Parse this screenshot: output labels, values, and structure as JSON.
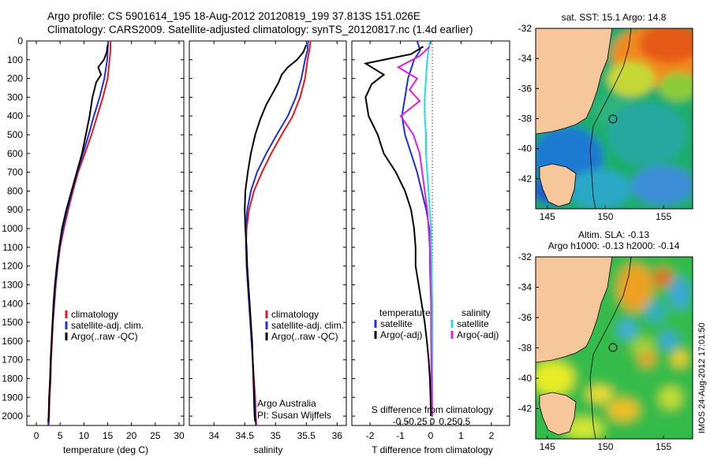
{
  "title_line1": "Argo profile: CS 5901614_195 18-Aug-2012 20120819_199 37.813S 151.026E",
  "title_line2": "Climatology: CARS2009. Satellite-adjusted climatology: synTS_20120817.nc (1.4d earlier)",
  "credit_vertical": "IMOS 24-Aug-2012 17:01:50",
  "colors": {
    "climatology": "#e31a1c",
    "satellite": "#1f2fd6",
    "argo": "#000000",
    "satellite_s": "#22dddd",
    "argo_s": "#dd22dd",
    "land": "#f5c79a"
  },
  "chart_data": [
    {
      "type": "line",
      "xlabel": "temperature (deg C)",
      "ylabel": "",
      "xlim": [
        -2,
        31
      ],
      "ylim": [
        2050,
        0
      ],
      "xticks": [
        "0",
        "5",
        "10",
        "15",
        "20",
        "25",
        "30"
      ],
      "yticks": [
        "0",
        "100",
        "200",
        "300",
        "400",
        "500",
        "600",
        "700",
        "800",
        "900",
        "1000",
        "1100",
        "1200",
        "1300",
        "1400",
        "1500",
        "1600",
        "1700",
        "1800",
        "1900",
        "2000"
      ],
      "legend": [
        "climatology",
        "satellite-adj. clim.",
        "Argo(..raw -QC)"
      ],
      "series": [
        {
          "name": "climatology",
          "points": [
            [
              15.6,
              0
            ],
            [
              15.6,
              50
            ],
            [
              15.4,
              100
            ],
            [
              15.0,
              200
            ],
            [
              14.0,
              300
            ],
            [
              12.8,
              400
            ],
            [
              11.6,
              500
            ],
            [
              10.2,
              600
            ],
            [
              8.8,
              700
            ],
            [
              7.7,
              800
            ],
            [
              6.7,
              900
            ],
            [
              5.8,
              1000
            ],
            [
              5.0,
              1100
            ],
            [
              4.5,
              1200
            ],
            [
              4.1,
              1300
            ],
            [
              3.8,
              1400
            ],
            [
              3.5,
              1500
            ],
            [
              3.3,
              1600
            ],
            [
              3.1,
              1700
            ],
            [
              3.0,
              1800
            ],
            [
              2.8,
              1900
            ],
            [
              2.7,
              2000
            ],
            [
              2.6,
              2050
            ]
          ]
        },
        {
          "name": "satellite-adj. clim.",
          "points": [
            [
              15.1,
              0
            ],
            [
              15.0,
              50
            ],
            [
              14.9,
              100
            ],
            [
              14.3,
              200
            ],
            [
              13.3,
              300
            ],
            [
              12.1,
              400
            ],
            [
              11.0,
              500
            ],
            [
              9.8,
              600
            ],
            [
              8.6,
              700
            ],
            [
              7.5,
              800
            ],
            [
              6.5,
              900
            ],
            [
              5.6,
              1000
            ],
            [
              4.9,
              1100
            ],
            [
              4.4,
              1200
            ],
            [
              4.0,
              1300
            ],
            [
              3.7,
              1400
            ],
            [
              3.4,
              1500
            ],
            [
              3.2,
              1600
            ],
            [
              3.0,
              1700
            ],
            [
              2.9,
              1800
            ],
            [
              2.7,
              1900
            ],
            [
              2.6,
              2000
            ],
            [
              2.5,
              2050
            ]
          ]
        },
        {
          "name": "Argo(..raw -QC)",
          "points": [
            [
              15.0,
              20
            ],
            [
              14.8,
              60
            ],
            [
              14.2,
              100
            ],
            [
              13.0,
              140
            ],
            [
              13.6,
              180
            ],
            [
              12.6,
              220
            ],
            [
              11.8,
              300
            ],
            [
              11.2,
              400
            ],
            [
              10.4,
              500
            ],
            [
              9.6,
              600
            ],
            [
              8.5,
              700
            ],
            [
              7.4,
              800
            ],
            [
              6.3,
              900
            ],
            [
              5.4,
              1000
            ],
            [
              4.8,
              1100
            ],
            [
              4.3,
              1200
            ],
            [
              3.9,
              1300
            ],
            [
              3.6,
              1400
            ],
            [
              3.4,
              1500
            ],
            [
              3.2,
              1600
            ],
            [
              3.0,
              1700
            ],
            [
              2.9,
              1800
            ],
            [
              2.7,
              1900
            ],
            [
              2.6,
              2000
            ],
            [
              2.5,
              2030
            ]
          ]
        }
      ]
    },
    {
      "type": "line",
      "xlabel": "salinity",
      "xlim": [
        33.6,
        36.15
      ],
      "ylim": [
        2050,
        0
      ],
      "xticks": [
        "34",
        "34.5",
        "35",
        "35.5",
        "36"
      ],
      "legend": [
        "climatology",
        "satellite-adj. clim.",
        "Argo(..raw -QC)"
      ],
      "annotation": [
        "Argo Australia",
        "PI: Susan Wijffels"
      ],
      "series": [
        {
          "name": "climatology",
          "points": [
            [
              35.57,
              0
            ],
            [
              35.55,
              50
            ],
            [
              35.52,
              100
            ],
            [
              35.48,
              200
            ],
            [
              35.4,
              300
            ],
            [
              35.28,
              400
            ],
            [
              35.1,
              500
            ],
            [
              34.93,
              600
            ],
            [
              34.78,
              700
            ],
            [
              34.65,
              800
            ],
            [
              34.57,
              900
            ],
            [
              34.53,
              1000
            ],
            [
              34.52,
              1100
            ],
            [
              34.53,
              1200
            ],
            [
              34.55,
              1300
            ],
            [
              34.57,
              1400
            ],
            [
              34.59,
              1500
            ],
            [
              34.61,
              1600
            ],
            [
              34.63,
              1700
            ],
            [
              34.65,
              1800
            ],
            [
              34.67,
              1900
            ],
            [
              34.68,
              2000
            ],
            [
              34.69,
              2050
            ]
          ]
        },
        {
          "name": "satellite-adj. clim.",
          "points": [
            [
              35.53,
              0
            ],
            [
              35.52,
              50
            ],
            [
              35.48,
              100
            ],
            [
              35.42,
              200
            ],
            [
              35.33,
              300
            ],
            [
              35.2,
              400
            ],
            [
              35.02,
              500
            ],
            [
              34.85,
              600
            ],
            [
              34.7,
              700
            ],
            [
              34.6,
              800
            ],
            [
              34.54,
              900
            ],
            [
              34.52,
              1000
            ],
            [
              34.52,
              1100
            ],
            [
              34.53,
              1200
            ],
            [
              34.55,
              1300
            ],
            [
              34.57,
              1400
            ],
            [
              34.59,
              1500
            ],
            [
              34.61,
              1600
            ],
            [
              34.63,
              1700
            ],
            [
              34.64,
              1800
            ],
            [
              34.66,
              1900
            ],
            [
              34.67,
              2000
            ],
            [
              34.68,
              2050
            ]
          ]
        },
        {
          "name": "Argo(..raw -QC)",
          "points": [
            [
              35.5,
              20
            ],
            [
              35.45,
              60
            ],
            [
              35.35,
              100
            ],
            [
              35.2,
              140
            ],
            [
              35.1,
              180
            ],
            [
              35.05,
              220
            ],
            [
              34.95,
              280
            ],
            [
              34.85,
              340
            ],
            [
              34.75,
              420
            ],
            [
              34.67,
              500
            ],
            [
              34.6,
              600
            ],
            [
              34.55,
              700
            ],
            [
              34.51,
              800
            ],
            [
              34.5,
              900
            ],
            [
              34.51,
              1000
            ],
            [
              34.53,
              1100
            ],
            [
              34.54,
              1200
            ],
            [
              34.56,
              1300
            ],
            [
              34.58,
              1400
            ],
            [
              34.6,
              1500
            ],
            [
              34.62,
              1600
            ],
            [
              34.63,
              1700
            ],
            [
              34.64,
              1800
            ],
            [
              34.65,
              1900
            ],
            [
              34.66,
              2000
            ],
            [
              34.67,
              2030
            ]
          ]
        }
      ]
    },
    {
      "type": "line",
      "xlabel": "T difference from climatology",
      "top_label": "S difference from climatology",
      "xlim": [
        -2.6,
        2.6
      ],
      "ylim": [
        2050,
        0
      ],
      "xticks": [
        "-2",
        "-1",
        "0",
        "1",
        "2"
      ],
      "sticks": [
        "-0.5",
        "-0.25",
        "0",
        "0.25",
        "0.5"
      ],
      "legend_groups": [
        {
          "heading": "temperature",
          "items": [
            "satellite",
            "Argo(-adj)"
          ]
        },
        {
          "heading": "salinity",
          "items": [
            "satellite",
            "Argo(-adj)"
          ]
        }
      ],
      "series": [
        {
          "name": "satellite",
          "group": "temperature",
          "points": [
            [
              -0.5,
              0
            ],
            [
              -0.4,
              50
            ],
            [
              -0.6,
              100
            ],
            [
              -0.8,
              200
            ],
            [
              -0.9,
              300
            ],
            [
              -1.0,
              400
            ],
            [
              -0.9,
              500
            ],
            [
              -0.7,
              600
            ],
            [
              -0.5,
              700
            ],
            [
              -0.35,
              800
            ],
            [
              -0.2,
              900
            ],
            [
              -0.1,
              1000
            ],
            [
              -0.08,
              1100
            ],
            [
              -0.05,
              1200
            ],
            [
              -0.04,
              1300
            ],
            [
              -0.04,
              1400
            ],
            [
              -0.04,
              1500
            ],
            [
              -0.03,
              1600
            ],
            [
              -0.03,
              1700
            ],
            [
              -0.03,
              1800
            ],
            [
              -0.02,
              1900
            ],
            [
              -0.02,
              2000
            ]
          ]
        },
        {
          "name": "Argo(-adj)",
          "group": "temperature",
          "points": [
            [
              -0.3,
              30
            ],
            [
              -0.7,
              70
            ],
            [
              -2.2,
              120
            ],
            [
              -1.6,
              180
            ],
            [
              -2.0,
              230
            ],
            [
              -2.2,
              300
            ],
            [
              -2.1,
              400
            ],
            [
              -1.8,
              500
            ],
            [
              -1.6,
              600
            ],
            [
              -1.2,
              700
            ],
            [
              -0.9,
              800
            ],
            [
              -0.7,
              900
            ],
            [
              -0.6,
              1000
            ],
            [
              -0.55,
              1100
            ],
            [
              -0.55,
              1200
            ],
            [
              -0.45,
              1300
            ],
            [
              -0.35,
              1400
            ],
            [
              -0.25,
              1500
            ],
            [
              -0.18,
              1600
            ],
            [
              -0.12,
              1700
            ],
            [
              -0.08,
              1800
            ],
            [
              -0.06,
              1900
            ],
            [
              -0.05,
              2000
            ]
          ]
        },
        {
          "name": "satellite",
          "group": "salinity",
          "points": [
            [
              -0.02,
              0
            ],
            [
              -0.03,
              50
            ],
            [
              -0.04,
              100
            ],
            [
              -0.05,
              200
            ],
            [
              -0.06,
              300
            ],
            [
              -0.06,
              400
            ],
            [
              -0.05,
              500
            ],
            [
              -0.05,
              600
            ],
            [
              -0.04,
              700
            ],
            [
              -0.03,
              800
            ],
            [
              -0.02,
              900
            ],
            [
              -0.01,
              1000
            ],
            [
              -0.005,
              1200
            ],
            [
              0,
              1400
            ],
            [
              0,
              1600
            ],
            [
              0,
              1800
            ],
            [
              0,
              2000
            ]
          ]
        },
        {
          "name": "Argo(-adj)",
          "group": "salinity",
          "points": [
            [
              -0.02,
              30
            ],
            [
              -0.1,
              80
            ],
            [
              -0.27,
              140
            ],
            [
              -0.12,
              200
            ],
            [
              -0.18,
              260
            ],
            [
              -0.1,
              320
            ],
            [
              -0.25,
              400
            ],
            [
              -0.15,
              500
            ],
            [
              -0.1,
              600
            ],
            [
              -0.08,
              700
            ],
            [
              -0.06,
              800
            ],
            [
              -0.04,
              900
            ],
            [
              -0.03,
              1000
            ],
            [
              -0.02,
              1100
            ],
            [
              -0.02,
              1200
            ],
            [
              -0.015,
              1300
            ],
            [
              -0.01,
              1400
            ],
            [
              -0.01,
              1500
            ],
            [
              -0.01,
              1600
            ],
            [
              -0.005,
              1800
            ],
            [
              0,
              2000
            ]
          ]
        }
      ]
    },
    {
      "type": "heatmap",
      "title": "sat. SST: 15.1  Argo: 14.8",
      "xticks": [
        "145",
        "150",
        "155"
      ],
      "yticks": [
        "-32",
        "-34",
        "-36",
        "-38",
        "-40",
        "-42"
      ],
      "xlim": [
        144,
        157.5
      ],
      "ylim": [
        -44,
        -32
      ]
    },
    {
      "type": "heatmap",
      "title_line1": "Altim. SLA: -0.13",
      "title_line2": "Argo h1000: -0.13 h2000: -0.14",
      "xticks": [
        "145",
        "150",
        "155"
      ],
      "yticks": [
        "-32",
        "-34",
        "-36",
        "-38",
        "-40",
        "-42"
      ],
      "xlim": [
        144,
        157.5
      ],
      "ylim": [
        -44,
        -32
      ]
    }
  ]
}
